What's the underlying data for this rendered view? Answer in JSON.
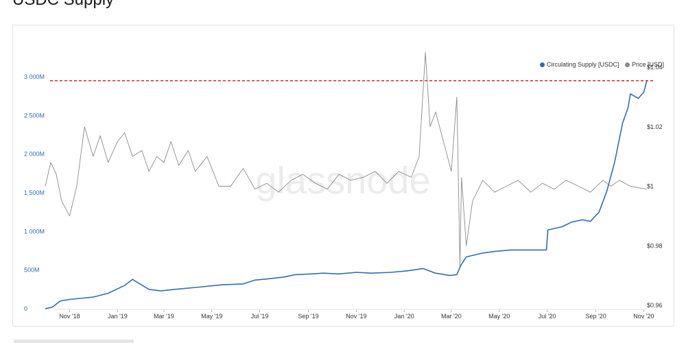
{
  "page": {
    "title": "USDC Supply"
  },
  "legend": {
    "items": [
      {
        "label": "Circulating Supply [USDC]",
        "color": "#2e6db4"
      },
      {
        "label": "Price [USD]",
        "color": "#8a8a8a"
      }
    ]
  },
  "watermark": "glassnode",
  "chart_data": {
    "type": "line",
    "x_ticks": [
      "Nov '18",
      "Jan '19",
      "Mar '19",
      "May '19",
      "Jul '19",
      "Sep '19",
      "Nov '19",
      "Jan '20",
      "Mar '20",
      "May '20",
      "Jul '20",
      "Sep '20",
      "Nov '20"
    ],
    "y_left": {
      "ticks": [
        "0",
        "500M",
        "1 000M",
        "1 500M",
        "2 000M",
        "2 500M",
        "3 000M"
      ],
      "range": [
        0,
        3000
      ],
      "unit": "M"
    },
    "y_right": {
      "ticks": [
        "$0.96",
        "$0.98",
        "$1",
        "$1.02",
        "$1.04"
      ],
      "range": [
        0.96,
        1.04
      ]
    },
    "reference_line": {
      "value": 2950,
      "axis": "left",
      "color": "#d62020",
      "style": "dashed"
    },
    "series": [
      {
        "name": "Circulating Supply [USDC]",
        "axis": "left",
        "color": "#2e6db4",
        "x": [
          "2018-10-01",
          "2018-10-10",
          "2018-10-20",
          "2018-11-01",
          "2018-12-01",
          "2018-12-20",
          "2019-01-10",
          "2019-01-20",
          "2019-01-28",
          "2019-02-10",
          "2019-02-25",
          "2019-03-15",
          "2019-04-15",
          "2019-05-15",
          "2019-06-10",
          "2019-06-25",
          "2019-07-15",
          "2019-08-01",
          "2019-08-15",
          "2019-09-05",
          "2019-09-20",
          "2019-10-10",
          "2019-11-01",
          "2019-11-20",
          "2019-12-15",
          "2020-01-05",
          "2020-01-25",
          "2020-02-10",
          "2020-02-28",
          "2020-03-08",
          "2020-03-13",
          "2020-03-20",
          "2020-04-10",
          "2020-04-25",
          "2020-05-15",
          "2020-06-10",
          "2020-06-30",
          "2020-07-02",
          "2020-07-20",
          "2020-08-01",
          "2020-08-15",
          "2020-08-25",
          "2020-09-05",
          "2020-09-15",
          "2020-09-25",
          "2020-10-05",
          "2020-10-12",
          "2020-10-15",
          "2020-10-25",
          "2020-11-01",
          "2020-11-05"
        ],
        "values": [
          0,
          20,
          100,
          120,
          150,
          200,
          300,
          380,
          330,
          250,
          230,
          250,
          280,
          310,
          320,
          370,
          390,
          410,
          440,
          450,
          460,
          450,
          470,
          460,
          470,
          490,
          520,
          460,
          430,
          440,
          560,
          670,
          720,
          740,
          760,
          760,
          760,
          1020,
          1060,
          1120,
          1150,
          1130,
          1250,
          1520,
          1900,
          2400,
          2600,
          2780,
          2720,
          2800,
          2950
        ]
      },
      {
        "name": "Price [USD]",
        "axis": "right",
        "color": "#8a8a8a",
        "x": [
          "2018-10-01",
          "2018-10-08",
          "2018-10-15",
          "2018-10-22",
          "2018-11-01",
          "2018-11-10",
          "2018-11-20",
          "2018-12-01",
          "2018-12-10",
          "2018-12-20",
          "2019-01-01",
          "2019-01-10",
          "2019-01-20",
          "2019-02-01",
          "2019-02-10",
          "2019-02-20",
          "2019-03-01",
          "2019-03-10",
          "2019-03-20",
          "2019-04-01",
          "2019-04-10",
          "2019-04-25",
          "2019-05-10",
          "2019-05-25",
          "2019-06-10",
          "2019-06-25",
          "2019-07-10",
          "2019-07-25",
          "2019-08-10",
          "2019-08-25",
          "2019-09-10",
          "2019-09-25",
          "2019-10-10",
          "2019-10-25",
          "2019-11-10",
          "2019-11-25",
          "2019-12-10",
          "2019-12-25",
          "2020-01-10",
          "2020-01-20",
          "2020-01-28",
          "2020-02-03",
          "2020-02-10",
          "2020-02-20",
          "2020-03-01",
          "2020-03-08",
          "2020-03-12",
          "2020-03-14",
          "2020-03-20",
          "2020-03-28",
          "2020-04-10",
          "2020-04-25",
          "2020-05-10",
          "2020-05-25",
          "2020-06-10",
          "2020-06-25",
          "2020-07-10",
          "2020-07-25",
          "2020-08-10",
          "2020-08-25",
          "2020-09-10",
          "2020-09-20",
          "2020-10-01",
          "2020-10-15",
          "2020-11-05"
        ],
        "values": [
          1.0,
          1.008,
          1.004,
          0.995,
          0.99,
          1.0,
          1.02,
          1.01,
          1.017,
          1.008,
          1.015,
          1.018,
          1.01,
          1.012,
          1.005,
          1.01,
          1.008,
          1.015,
          1.007,
          1.012,
          1.005,
          1.01,
          1.0,
          1.0,
          1.006,
          0.999,
          1.001,
          0.998,
          1.002,
          1.004,
          1.001,
          0.999,
          1.004,
          1.002,
          1.003,
          1.005,
          1.001,
          1.005,
          1.003,
          1.01,
          1.045,
          1.02,
          1.025,
          1.015,
          1.005,
          1.03,
          0.973,
          1.003,
          0.98,
          0.995,
          1.002,
          0.998,
          1.0,
          1.002,
          0.998,
          1.001,
          0.999,
          1.002,
          1.0,
          0.998,
          1.002,
          1.0,
          1.002,
          1.0,
          0.999
        ]
      }
    ]
  }
}
